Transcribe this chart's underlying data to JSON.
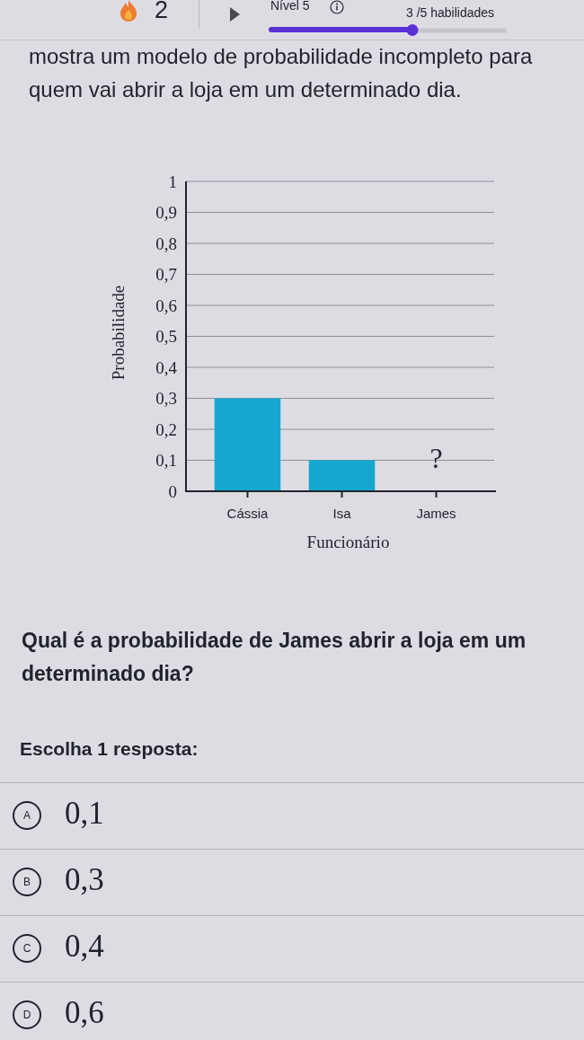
{
  "chart_data": {
    "type": "bar",
    "categories": [
      "Cássia",
      "Isa",
      "James"
    ],
    "values": [
      0.3,
      0.1,
      null
    ],
    "color": "#14a8d0",
    "xlabel": "Funcionário",
    "ylabel": "Probabilidade",
    "ylim": [
      0,
      1
    ],
    "yticks": [
      0,
      {
        "value": 0.1,
        "label": "0,1"
      },
      {
        "value": 0.2,
        "label": "0,2"
      },
      {
        "value": 0.3,
        "label": "0,3"
      },
      {
        "value": 0.4,
        "label": "0,4"
      },
      {
        "value": 0.5,
        "label": "0,5"
      },
      {
        "value": 0.6,
        "label": "0,6"
      },
      {
        "value": 0.7,
        "label": "0,7"
      },
      {
        "value": 0.8,
        "label": "0,8"
      },
      {
        "value": 0.9,
        "label": "0,9"
      },
      1
    ],
    "grid": "y",
    "annotations": [
      "2",
      "Nível 5",
      "3 /5 habilidades",
      "mostra um modelo de probabilidade incompleto para quem vai abrir a loja em um determinado dia.",
      "?",
      "Qual é a probabilidade de James abrir a loja em um determinado dia?",
      "Escolha 1 resposta:",
      "A",
      "0,1",
      "B",
      "0,3",
      "C",
      "0,4",
      "D",
      "0,6"
    ]
  }
}
